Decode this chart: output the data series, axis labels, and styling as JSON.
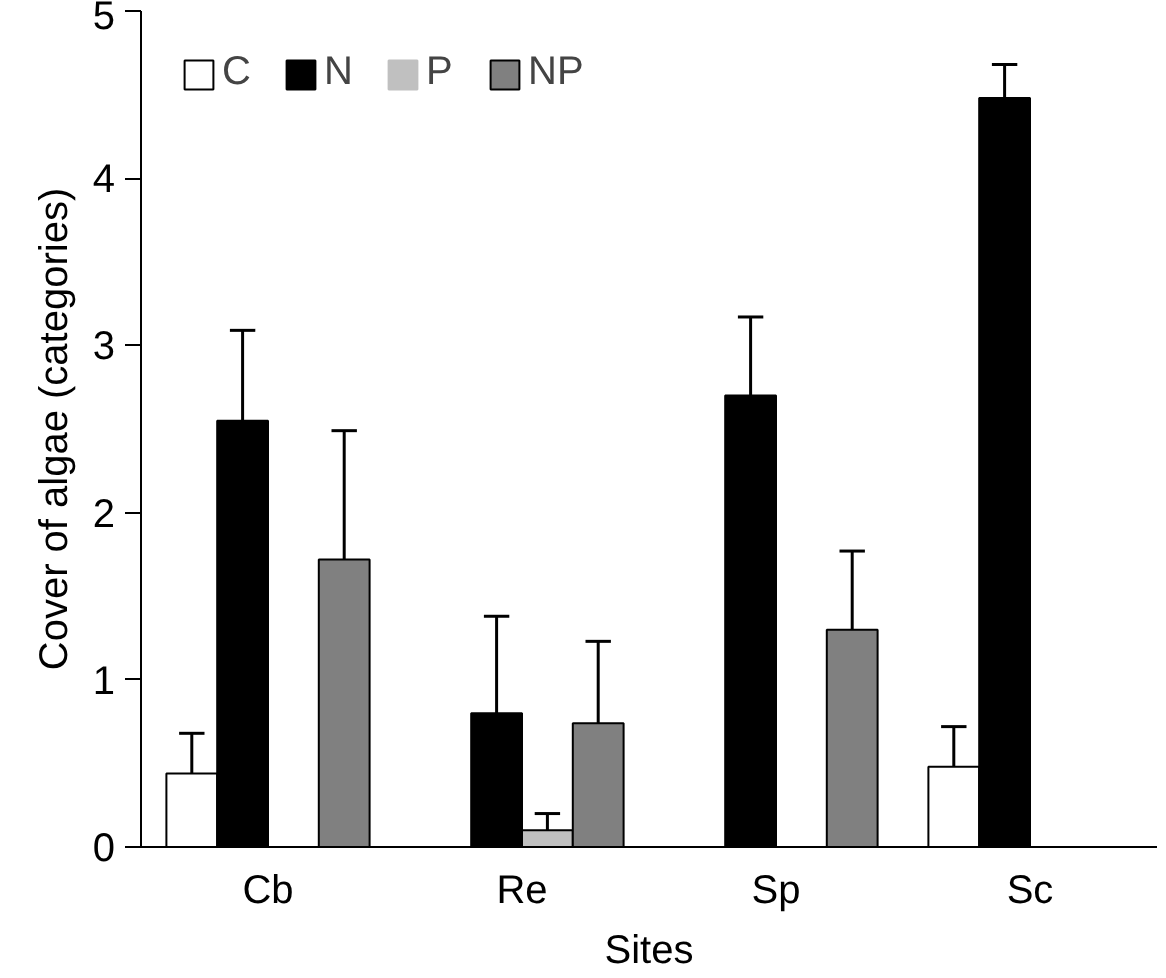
{
  "chart_data": {
    "type": "bar",
    "xlabel": "Sites",
    "ylabel": "Cover of algae (categories)",
    "categories": [
      "Cb",
      "Re",
      "Sp",
      "Sc"
    ],
    "series": [
      {
        "name": "C",
        "color": "#ffffff",
        "values": [
          0.44,
          0,
          0,
          0.48
        ],
        "errors": [
          [
            0.44,
            0.68
          ],
          null,
          null,
          [
            0.48,
            0.72
          ]
        ]
      },
      {
        "name": "N",
        "color": "#000000",
        "values": [
          2.55,
          0.8,
          2.7,
          4.48
        ],
        "errors": [
          [
            2.55,
            3.09
          ],
          [
            0.8,
            1.38
          ],
          [
            2.7,
            3.17
          ],
          [
            4.48,
            4.68
          ]
        ]
      },
      {
        "name": "P",
        "color": "#c0c0c0",
        "values": [
          0,
          0.1,
          0,
          0
        ],
        "errors": [
          null,
          [
            0.1,
            0.2
          ],
          null,
          null
        ]
      },
      {
        "name": "NP",
        "color": "#808080",
        "values": [
          1.72,
          0.74,
          1.3,
          0
        ],
        "errors": [
          [
            1.72,
            2.49
          ],
          [
            0.74,
            1.23
          ],
          [
            1.3,
            1.77
          ],
          null
        ]
      }
    ],
    "ylim": [
      0,
      5
    ],
    "yticks": [
      0,
      1,
      2,
      3,
      4,
      5
    ],
    "grid": false,
    "legend": "top left"
  }
}
